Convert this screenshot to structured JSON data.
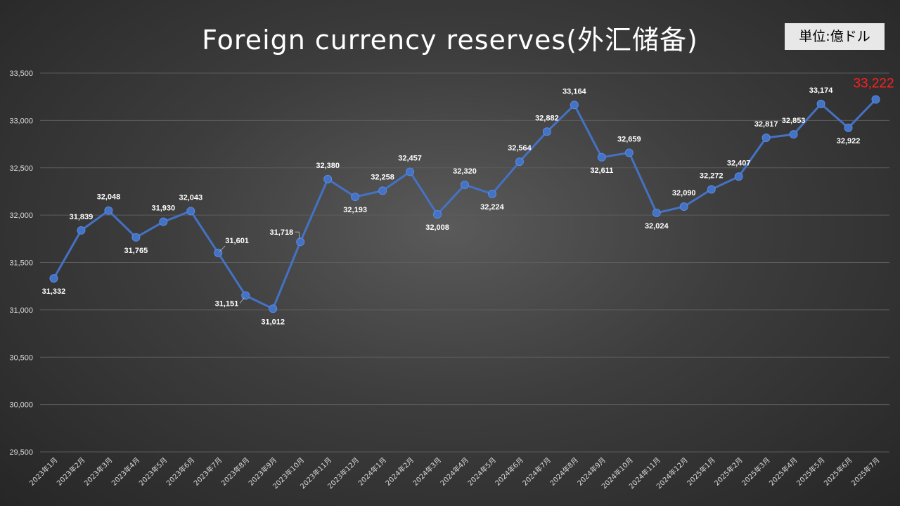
{
  "chart_data": {
    "type": "line",
    "title": "Foreign currency reserves(外汇储备)",
    "unit_label": "単位:億ドル",
    "ylim": [
      29500,
      33500
    ],
    "yticks": [
      29500,
      30000,
      30500,
      31000,
      31500,
      32000,
      32500,
      33000,
      33500
    ],
    "ytick_labels": [
      "29,500",
      "30,000",
      "30,500",
      "31,000",
      "31,500",
      "32,000",
      "32,500",
      "33,000",
      "33,500"
    ],
    "grid": true,
    "categories": [
      "2023年1月",
      "2023年2月",
      "2023年3月",
      "2023年4月",
      "2023年5月",
      "2023年6月",
      "2023年7月",
      "2023年8月",
      "2023年9月",
      "2023年10月",
      "2023年11月",
      "2023年12月",
      "2024年1月",
      "2024年2月",
      "2024年3月",
      "2024年4月",
      "2024年5月",
      "2024年6月",
      "2024年7月",
      "2024年8月",
      "2024年9月",
      "2024年10月",
      "2024年11月",
      "2024年12月",
      "2025年1月",
      "2025年2月",
      "2025年3月",
      "2025年4月",
      "2025年5月",
      "2025年6月",
      "2025年7月"
    ],
    "values": [
      31332,
      31839,
      32048,
      31765,
      31930,
      32043,
      31601,
      31151,
      31012,
      31718,
      32380,
      32193,
      32258,
      32457,
      32008,
      32320,
      32224,
      32564,
      32882,
      33164,
      32611,
      32659,
      32024,
      32090,
      32272,
      32407,
      32817,
      32853,
      33174,
      32922,
      33222
    ],
    "value_labels": [
      "31,332",
      "31,839",
      "32,048",
      "31,765",
      "31,930",
      "32,043",
      "31,601",
      "31,151",
      "31,012",
      "31,718",
      "32,380",
      "32,193",
      "32,258",
      "32,457",
      "32,008",
      "32,320",
      "32,224",
      "32,564",
      "32,882",
      "33,164",
      "32,611",
      "32,659",
      "32,024",
      "32,090",
      "32,272",
      "32,407",
      "32,817",
      "32,853",
      "33,174",
      "32,922",
      "33,222"
    ],
    "label_positions": [
      "below",
      "above",
      "above",
      "below",
      "above",
      "above",
      "above-right",
      "below-left",
      "below",
      "above-left",
      "above",
      "below",
      "above",
      "above",
      "below",
      "above",
      "below",
      "above",
      "above",
      "above",
      "below",
      "above",
      "below",
      "above",
      "above",
      "above",
      "above",
      "above",
      "above",
      "below",
      "above"
    ],
    "colors": {
      "line": "#4472c4",
      "marker": "#4472c4",
      "label": "#ffffff",
      "highlight_label": "#ff1f1f"
    }
  }
}
